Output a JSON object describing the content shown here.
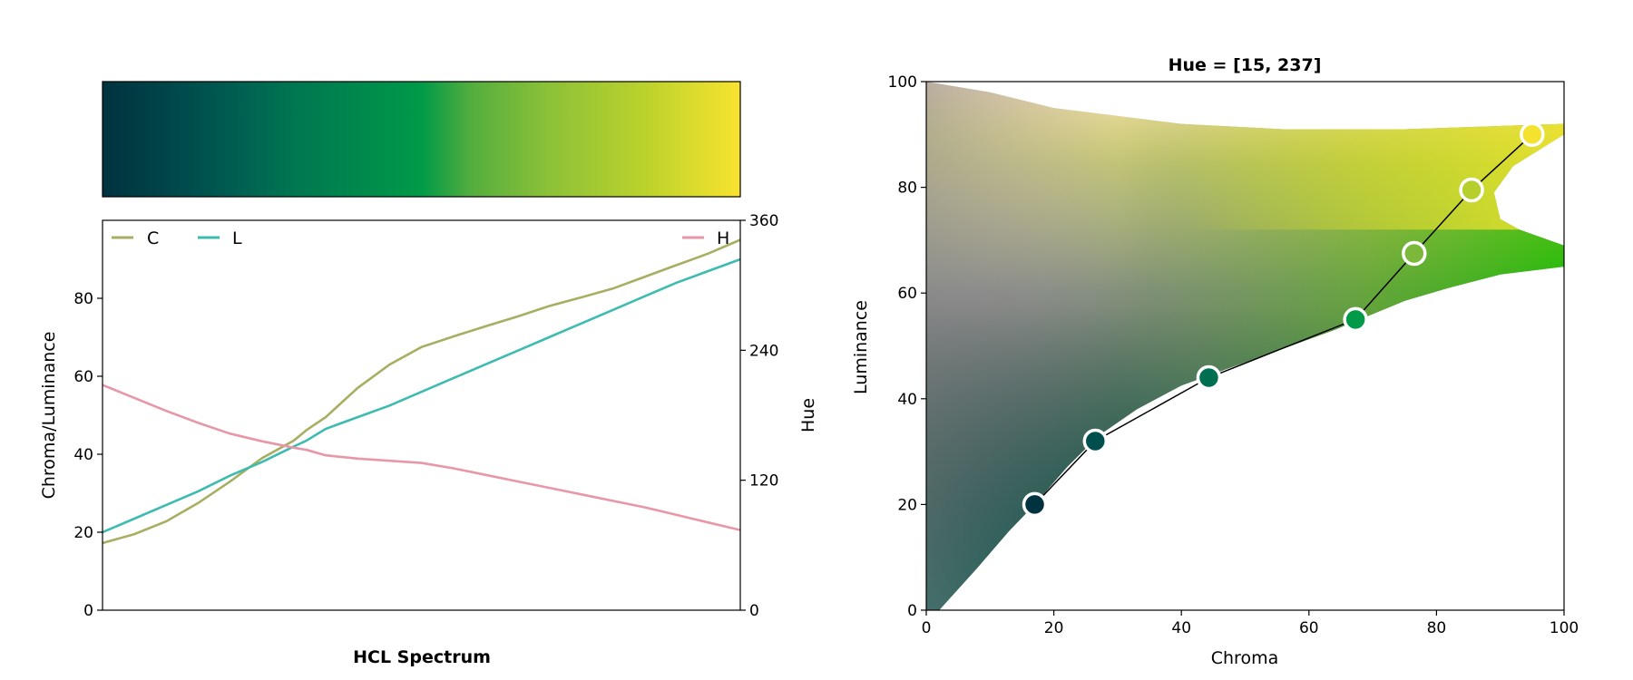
{
  "chart_data": [
    {
      "type": "line",
      "title": "HCL Spectrum",
      "colorbar": {
        "stops": [
          {
            "pos": 0.0,
            "color": "#00323F"
          },
          {
            "pos": 0.1,
            "color": "#004549"
          },
          {
            "pos": 0.2,
            "color": "#005C51"
          },
          {
            "pos": 0.3,
            "color": "#007651"
          },
          {
            "pos": 0.5,
            "color": "#009A48"
          },
          {
            "pos": 0.58,
            "color": "#55AE3E"
          },
          {
            "pos": 0.7,
            "color": "#8CC138"
          },
          {
            "pos": 0.85,
            "color": "#BBD22C"
          },
          {
            "pos": 1.0,
            "color": "#F8E32F"
          }
        ]
      },
      "x": [
        0,
        5,
        10,
        15,
        20,
        25,
        30,
        32,
        35,
        40,
        45,
        50,
        55,
        60,
        65,
        70,
        75,
        80,
        85,
        90,
        95,
        100
      ],
      "series": [
        {
          "name": "C",
          "color": "#A8AE62",
          "axis": "left",
          "values": [
            17.2,
            19.5,
            22.8,
            27.5,
            33.0,
            39.0,
            43.5,
            46.2,
            49.5,
            57.0,
            63.0,
            67.5,
            70.2,
            72.8,
            75.3,
            78.0,
            80.2,
            82.5,
            85.5,
            88.5,
            91.5,
            95.0
          ]
        },
        {
          "name": "L",
          "color": "#3EBBB0",
          "axis": "left",
          "values": [
            20.0,
            23.5,
            27.0,
            30.5,
            34.5,
            38.0,
            42.0,
            43.5,
            46.5,
            49.5,
            52.5,
            56.0,
            59.5,
            63.0,
            66.5,
            70.0,
            73.5,
            77.0,
            80.5,
            84.0,
            87.0,
            90.0
          ]
        },
        {
          "name": "H",
          "color": "#E797A7",
          "axis": "right",
          "values": [
            208,
            196,
            184,
            173,
            163,
            156,
            150,
            148,
            143,
            140,
            138,
            136,
            131,
            125,
            119,
            113,
            107,
            101,
            95,
            88,
            81,
            74
          ]
        }
      ],
      "ylabel": "Chroma/Luminance",
      "ylabel_right": "Hue",
      "ylim": [
        0,
        100
      ],
      "ylim_right": [
        0,
        360
      ],
      "yticks": [
        0,
        20,
        40,
        60,
        80
      ],
      "yticks_right": [
        0,
        120,
        240,
        360
      ],
      "legend": [
        "C",
        "L",
        "H"
      ],
      "grid": false
    },
    {
      "type": "scatter",
      "title": "Hue = [15, 237]",
      "xlabel": "Chroma",
      "ylabel": "Luminance",
      "xlim": [
        0,
        100
      ],
      "ylim": [
        0,
        100
      ],
      "xticks": [
        0,
        20,
        40,
        60,
        80,
        100
      ],
      "yticks": [
        0,
        20,
        40,
        60,
        80,
        100
      ],
      "grid": false,
      "gamut_boundary": [
        [
          2,
          0
        ],
        [
          8,
          8
        ],
        [
          13,
          15
        ],
        [
          17,
          20
        ],
        [
          22,
          27
        ],
        [
          27,
          33
        ],
        [
          33,
          38
        ],
        [
          40,
          42.5
        ],
        [
          48,
          46
        ],
        [
          56,
          49.5
        ],
        [
          64,
          53
        ],
        [
          69,
          55.5
        ],
        [
          75,
          58.5
        ],
        [
          82,
          61
        ],
        [
          90,
          63.5
        ],
        [
          100,
          65
        ],
        [
          100,
          69
        ],
        [
          93,
          72
        ],
        [
          90,
          74
        ],
        [
          89,
          79
        ],
        [
          92,
          84
        ],
        [
          100,
          90
        ],
        [
          100,
          92
        ],
        [
          75,
          91
        ],
        [
          56,
          91
        ],
        [
          40,
          92
        ],
        [
          20,
          95
        ],
        [
          10,
          98
        ],
        [
          0,
          100
        ]
      ],
      "gamut_colors": {
        "light_top_left": "#FFFFFF",
        "peach_top": "#FFE1C0",
        "yellow_top_right": "#F2E231",
        "green_right": "#1FB80B",
        "teal_bottom": "#005E55",
        "black_bottom_left": "#000000",
        "gray_left": "#6E6E6E"
      },
      "palette_points": [
        {
          "chroma": 17,
          "luminance": 20,
          "color": "#00323F"
        },
        {
          "chroma": 26.5,
          "luminance": 32,
          "color": "#004F4F"
        },
        {
          "chroma": 44.3,
          "luminance": 44,
          "color": "#006E50"
        },
        {
          "chroma": 67.3,
          "luminance": 55,
          "color": "#009A48"
        },
        {
          "chroma": 76.5,
          "luminance": 67.5,
          "color": "#7CB93A"
        },
        {
          "chroma": 85.5,
          "luminance": 79.5,
          "color": "#B7CF2D"
        },
        {
          "chroma": 95,
          "luminance": 90,
          "color": "#F5E22F"
        }
      ]
    }
  ]
}
